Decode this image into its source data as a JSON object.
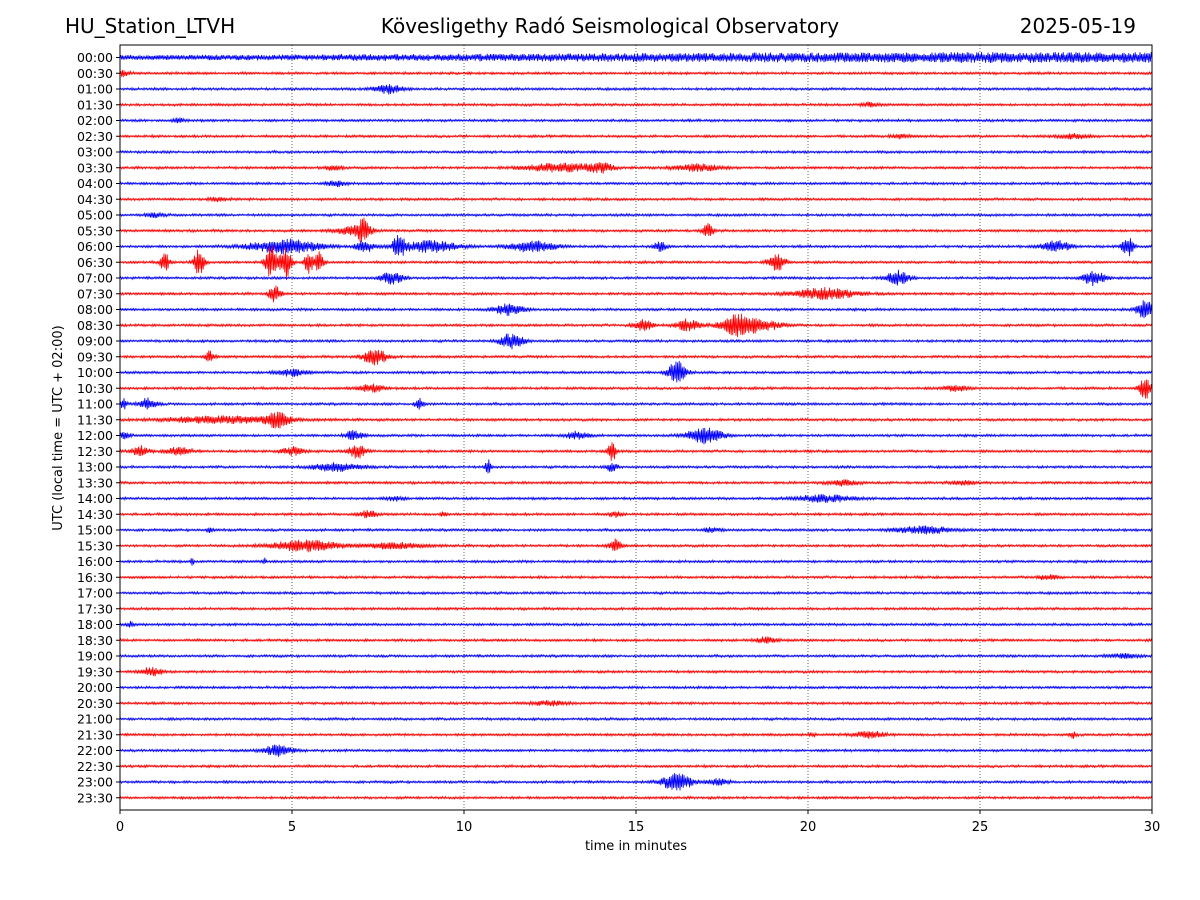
{
  "header": {
    "station": "HU_Station_LTVH",
    "title": "Kövesligethy Radó Seismological Observatory",
    "date": "2025-05-19"
  },
  "chart_data": {
    "type": "line",
    "title": "Kövesligethy Radó Seismological Observatory",
    "xlabel": "time in minutes",
    "ylabel": "UTC (local time = UTC + 02:00)",
    "xlim": [
      0,
      30
    ],
    "x_ticks": [
      "0",
      "5",
      "10",
      "15",
      "20",
      "25",
      "30"
    ],
    "grid_x": true,
    "colors": [
      "#0000ff",
      "#ff0000"
    ],
    "rows": [
      {
        "label": "00:00",
        "color": "#0000ff",
        "events": [
          [
            26,
            29,
            0.3
          ],
          [
            28,
            30,
            0.3
          ]
        ]
      },
      {
        "label": "00:30",
        "color": "#ff0000",
        "events": [
          [
            0.1,
            0.2,
            0.4
          ]
        ]
      },
      {
        "label": "01:00",
        "color": "#0000ff",
        "events": [
          [
            7.8,
            0.5,
            0.6
          ]
        ]
      },
      {
        "label": "01:30",
        "color": "#ff0000",
        "events": [
          [
            21.8,
            0.3,
            0.3
          ]
        ]
      },
      {
        "label": "02:00",
        "color": "#0000ff",
        "events": [
          [
            1.7,
            0.2,
            0.3
          ]
        ]
      },
      {
        "label": "02:30",
        "color": "#ff0000",
        "events": [
          [
            27.7,
            0.6,
            0.3
          ],
          [
            22.7,
            0.3,
            0.3
          ]
        ]
      },
      {
        "label": "03:00",
        "color": "#0000ff",
        "events": []
      },
      {
        "label": "03:30",
        "color": "#ff0000",
        "events": [
          [
            12.8,
            1.2,
            0.6
          ],
          [
            14,
            0.4,
            0.6
          ],
          [
            16.8,
            0.8,
            0.5
          ],
          [
            6.2,
            0.3,
            0.3
          ]
        ]
      },
      {
        "label": "04:00",
        "color": "#0000ff",
        "events": [
          [
            6.3,
            0.3,
            0.4
          ]
        ]
      },
      {
        "label": "04:30",
        "color": "#ff0000",
        "events": [
          [
            2.9,
            0.3,
            0.3
          ]
        ]
      },
      {
        "label": "05:00",
        "color": "#0000ff",
        "events": [
          [
            1,
            0.3,
            0.3
          ]
        ]
      },
      {
        "label": "05:30",
        "color": "#ff0000",
        "events": [
          [
            7.1,
            0.2,
            1.6
          ],
          [
            6.8,
            0.6,
            0.6
          ],
          [
            17.1,
            0.2,
            0.9
          ]
        ]
      },
      {
        "label": "06:00",
        "color": "#0000ff",
        "events": [
          [
            4.8,
            1.2,
            1.0
          ],
          [
            7.1,
            0.3,
            0.9
          ],
          [
            8.1,
            0.2,
            1.6
          ],
          [
            9,
            1,
            0.8
          ],
          [
            12,
            0.8,
            0.8
          ],
          [
            29.3,
            0.2,
            1.4
          ],
          [
            27.2,
            0.5,
            0.8
          ],
          [
            15.7,
            0.2,
            0.8
          ]
        ]
      },
      {
        "label": "06:30",
        "color": "#ff0000",
        "events": [
          [
            1.3,
            0.15,
            1.4
          ],
          [
            2.3,
            0.18,
            2.0
          ],
          [
            4.4,
            0.2,
            2.4
          ],
          [
            4.8,
            0.2,
            2.6
          ],
          [
            5.5,
            0.15,
            1.7
          ],
          [
            5.8,
            0.15,
            1.5
          ],
          [
            19.1,
            0.3,
            1.2
          ]
        ]
      },
      {
        "label": "07:00",
        "color": "#0000ff",
        "events": [
          [
            7.9,
            0.4,
            0.8
          ],
          [
            22.6,
            0.4,
            1.0
          ],
          [
            28.3,
            0.4,
            1.0
          ]
        ]
      },
      {
        "label": "07:30",
        "color": "#ff0000",
        "events": [
          [
            20.5,
            1.1,
            0.8
          ],
          [
            4.5,
            0.2,
            1.2
          ]
        ]
      },
      {
        "label": "08:00",
        "color": "#0000ff",
        "events": [
          [
            11.3,
            0.5,
            0.8
          ],
          [
            29.8,
            0.3,
            1.4
          ]
        ]
      },
      {
        "label": "08:30",
        "color": "#ff0000",
        "events": [
          [
            15.2,
            0.3,
            0.9
          ],
          [
            16.5,
            0.4,
            0.8
          ],
          [
            18,
            0.6,
            1.6
          ],
          [
            18.8,
            0.6,
            0.6
          ]
        ]
      },
      {
        "label": "09:00",
        "color": "#0000ff",
        "events": [
          [
            11.4,
            0.4,
            1.2
          ]
        ]
      },
      {
        "label": "09:30",
        "color": "#ff0000",
        "events": [
          [
            7.4,
            0.4,
            1.3
          ],
          [
            2.6,
            0.15,
            0.8
          ]
        ]
      },
      {
        "label": "10:00",
        "color": "#0000ff",
        "events": [
          [
            16.2,
            0.3,
            1.8
          ],
          [
            5,
            0.5,
            0.5
          ]
        ]
      },
      {
        "label": "10:30",
        "color": "#ff0000",
        "events": [
          [
            29.8,
            0.2,
            1.6
          ],
          [
            7.3,
            0.5,
            0.5
          ],
          [
            24.3,
            0.4,
            0.4
          ]
        ]
      },
      {
        "label": "11:00",
        "color": "#0000ff",
        "events": [
          [
            0.8,
            0.3,
            0.8
          ],
          [
            8.7,
            0.15,
            0.8
          ],
          [
            0.1,
            0.1,
            0.8
          ]
        ]
      },
      {
        "label": "11:30",
        "color": "#ff0000",
        "events": [
          [
            4.6,
            0.4,
            1.0
          ],
          [
            3,
            2,
            0.5
          ]
        ]
      },
      {
        "label": "12:00",
        "color": "#0000ff",
        "events": [
          [
            17,
            0.6,
            1.2
          ],
          [
            6.8,
            0.3,
            0.7
          ],
          [
            13.3,
            0.4,
            0.5
          ],
          [
            0.1,
            0.2,
            0.5
          ]
        ]
      },
      {
        "label": "12:30",
        "color": "#ff0000",
        "events": [
          [
            14.3,
            0.15,
            1.4
          ],
          [
            6.9,
            0.3,
            1.0
          ],
          [
            5,
            0.4,
            0.6
          ],
          [
            0.6,
            0.3,
            0.7
          ],
          [
            1.7,
            0.4,
            0.6
          ]
        ]
      },
      {
        "label": "13:00",
        "color": "#0000ff",
        "events": [
          [
            6.3,
            0.8,
            0.6
          ],
          [
            10.7,
            0.1,
            1.1
          ],
          [
            14.3,
            0.2,
            0.6
          ]
        ]
      },
      {
        "label": "13:30",
        "color": "#ff0000",
        "events": [
          [
            21,
            0.5,
            0.4
          ],
          [
            24.5,
            0.4,
            0.3
          ]
        ]
      },
      {
        "label": "14:00",
        "color": "#0000ff",
        "events": [
          [
            20.5,
            1.0,
            0.5
          ],
          [
            8,
            0.3,
            0.3
          ]
        ]
      },
      {
        "label": "14:30",
        "color": "#ff0000",
        "events": [
          [
            7.2,
            0.3,
            0.5
          ],
          [
            14.4,
            0.2,
            0.4
          ],
          [
            9.4,
            0.1,
            0.3
          ]
        ]
      },
      {
        "label": "15:00",
        "color": "#0000ff",
        "events": [
          [
            23.4,
            1.0,
            0.5
          ],
          [
            2.6,
            0.1,
            0.4
          ],
          [
            17.2,
            0.3,
            0.3
          ]
        ]
      },
      {
        "label": "15:30",
        "color": "#ff0000",
        "events": [
          [
            5.4,
            1.2,
            0.8
          ],
          [
            14.4,
            0.2,
            0.9
          ],
          [
            8,
            1,
            0.4
          ]
        ]
      },
      {
        "label": "16:00",
        "color": "#0000ff",
        "events": [
          [
            2.1,
            0.05,
            0.7
          ],
          [
            4.2,
            0.05,
            0.6
          ]
        ]
      },
      {
        "label": "16:30",
        "color": "#ff0000",
        "events": [
          [
            27,
            0.4,
            0.3
          ]
        ]
      },
      {
        "label": "17:00",
        "color": "#0000ff",
        "events": []
      },
      {
        "label": "17:30",
        "color": "#ff0000",
        "events": []
      },
      {
        "label": "18:00",
        "color": "#0000ff",
        "events": [
          [
            0.3,
            0.1,
            0.4
          ]
        ]
      },
      {
        "label": "18:30",
        "color": "#ff0000",
        "events": [
          [
            18.8,
            0.4,
            0.4
          ]
        ]
      },
      {
        "label": "19:00",
        "color": "#0000ff",
        "events": [
          [
            29.2,
            0.5,
            0.3
          ]
        ]
      },
      {
        "label": "19:30",
        "color": "#ff0000",
        "events": [
          [
            0.9,
            0.4,
            0.6
          ]
        ]
      },
      {
        "label": "20:00",
        "color": "#0000ff",
        "events": []
      },
      {
        "label": "20:30",
        "color": "#ff0000",
        "events": [
          [
            12.5,
            0.6,
            0.3
          ]
        ]
      },
      {
        "label": "21:00",
        "color": "#0000ff",
        "events": []
      },
      {
        "label": "21:30",
        "color": "#ff0000",
        "events": [
          [
            21.8,
            0.6,
            0.4
          ],
          [
            27.7,
            0.1,
            0.5
          ],
          [
            20.1,
            0.1,
            0.3
          ]
        ]
      },
      {
        "label": "22:00",
        "color": "#0000ff",
        "events": [
          [
            4.6,
            0.5,
            0.8
          ]
        ]
      },
      {
        "label": "22:30",
        "color": "#ff0000",
        "events": []
      },
      {
        "label": "23:00",
        "color": "#0000ff",
        "events": [
          [
            16.2,
            0.5,
            1.3
          ],
          [
            17.4,
            0.4,
            0.4
          ]
        ]
      },
      {
        "label": "23:30",
        "color": "#ff0000",
        "events": []
      }
    ]
  }
}
